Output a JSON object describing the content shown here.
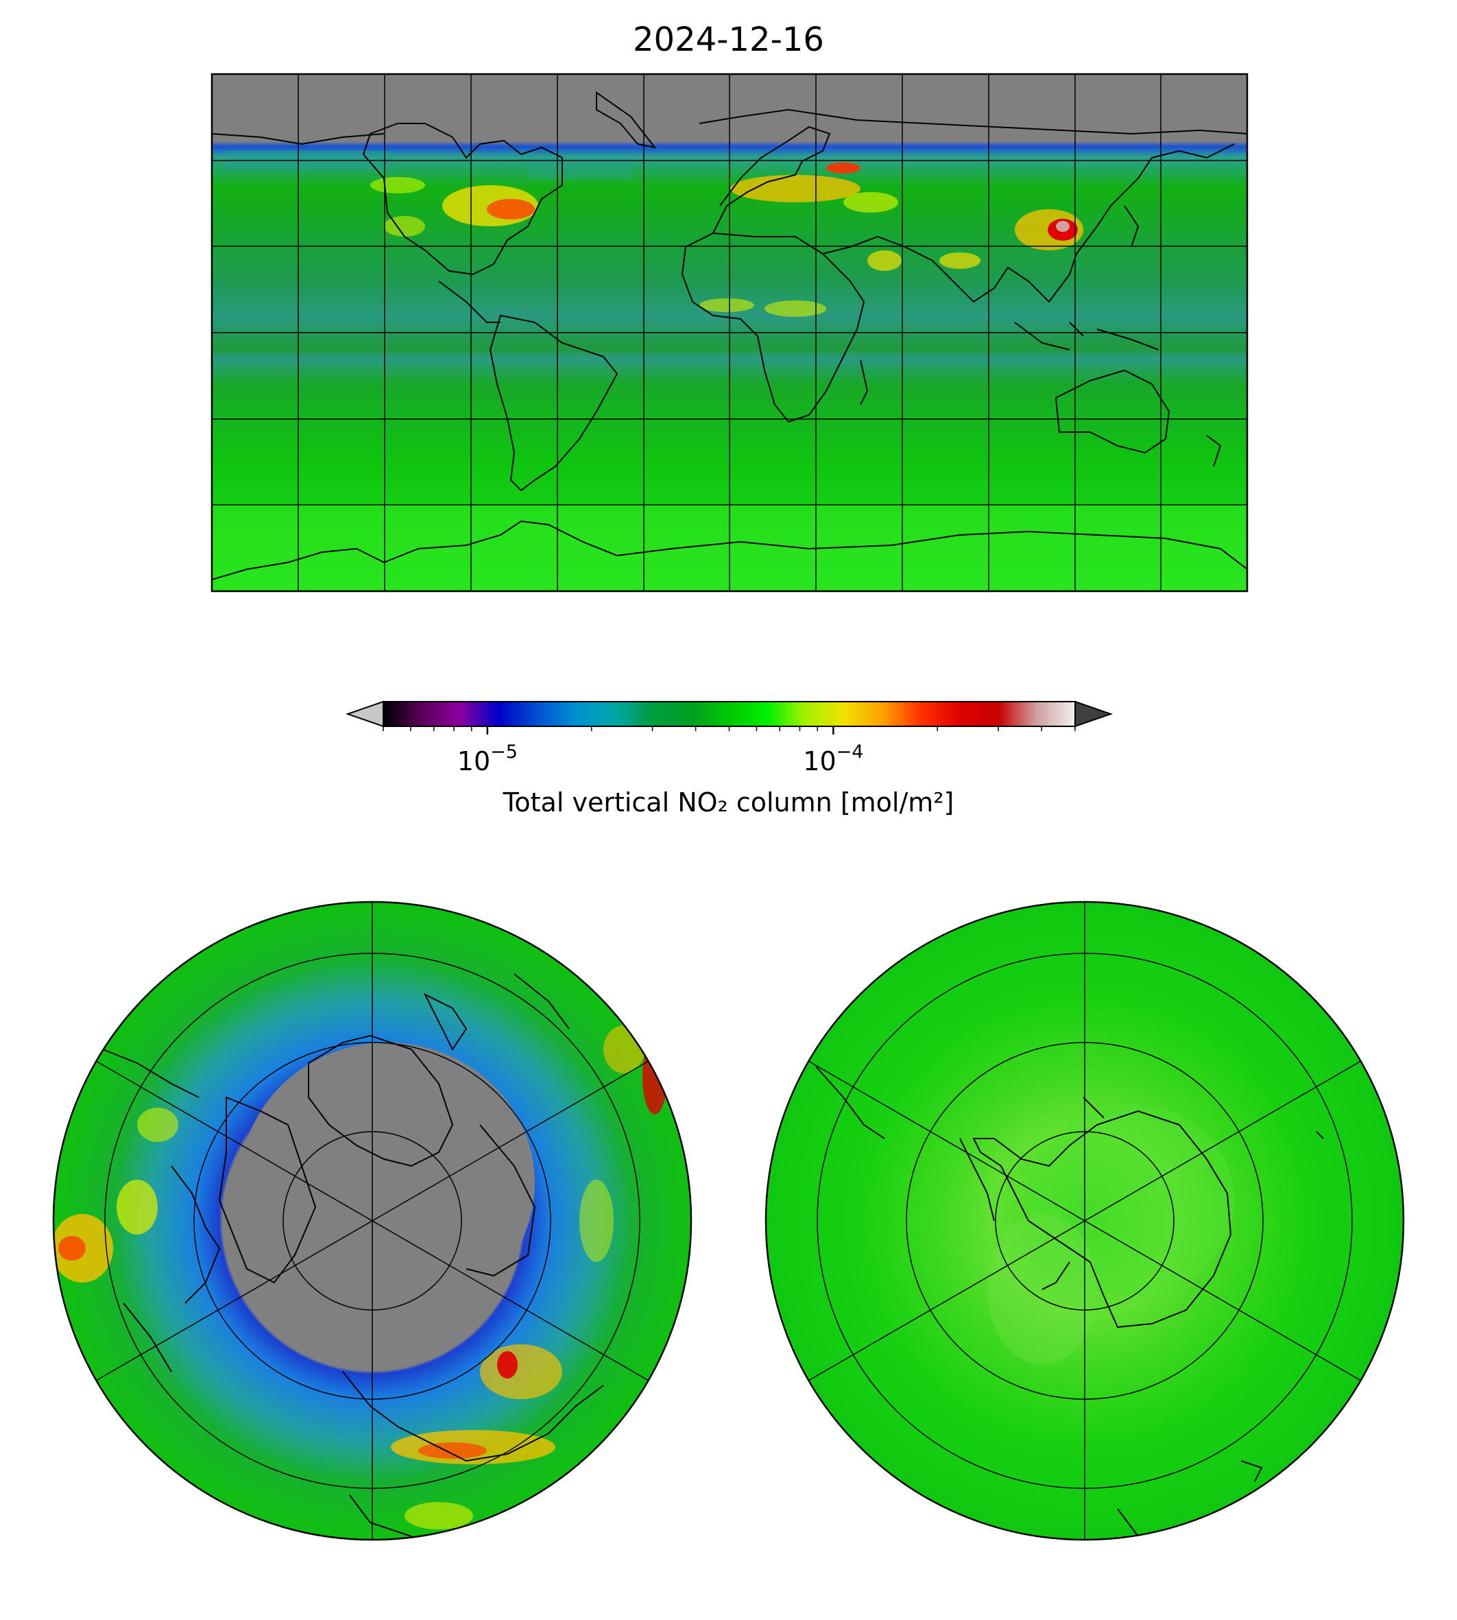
{
  "title": "2024-12-16",
  "colorbar": {
    "label": "Total vertical NO₂ column [mol/m²]",
    "scale": "log",
    "range": [
      5e-06,
      0.0005
    ],
    "ticks": [
      {
        "base": "10",
        "exp": "−5",
        "value": 1e-05
      },
      {
        "base": "10",
        "exp": "−4",
        "value": 0.0001
      }
    ],
    "extend": "both",
    "under_color": "#c8c8c8",
    "over_color": "#404040",
    "colors": [
      "#000000",
      "#5a005a",
      "#8c00a0",
      "#0000c8",
      "#0050d0",
      "#0090d0",
      "#00a8a8",
      "#009c40",
      "#00a020",
      "#00c800",
      "#00f000",
      "#a8f000",
      "#f0e000",
      "#ffa000",
      "#ff3000",
      "#e00000",
      "#c80000",
      "#d0a0a0",
      "#f0f0f0"
    ]
  },
  "maps": [
    {
      "name": "global",
      "projection": "plate-carree",
      "gridlines": "every 30° longitude, 30° latitude",
      "no_data_color": "#808080"
    },
    {
      "name": "north-pole",
      "projection": "polar-stereographic"
    },
    {
      "name": "south-pole",
      "projection": "polar-stereographic"
    }
  ]
}
